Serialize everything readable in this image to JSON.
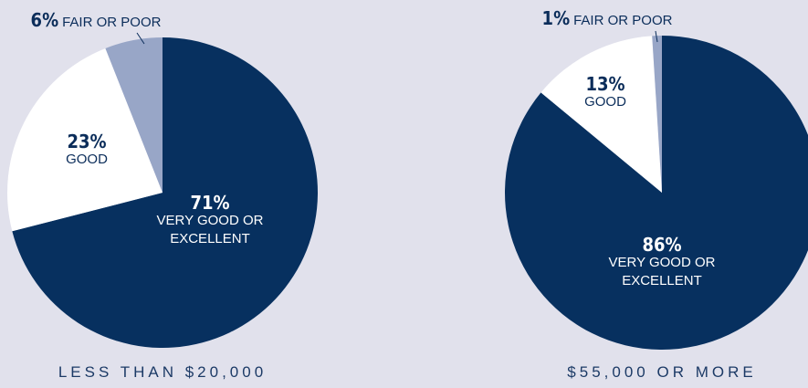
{
  "chart_data": [
    {
      "type": "pie",
      "title": "LESS THAN $20,000",
      "categories": [
        "VERY GOOD OR EXCELLENT",
        "GOOD",
        "FAIR OR POOR"
      ],
      "values": [
        71,
        23,
        6
      ],
      "value_labels": [
        "71%",
        "23%",
        "6%"
      ],
      "colors": [
        "#07305f",
        "#ffffff",
        "#98a6c7"
      ]
    },
    {
      "type": "pie",
      "title": "$55,000 OR MORE",
      "categories": [
        "VERY GOOD OR EXCELLENT",
        "GOOD",
        "FAIR OR POOR"
      ],
      "values": [
        86,
        13,
        1
      ],
      "value_labels": [
        "86%",
        "13%",
        "1%"
      ],
      "colors": [
        "#07305f",
        "#ffffff",
        "#98a6c7"
      ]
    }
  ]
}
